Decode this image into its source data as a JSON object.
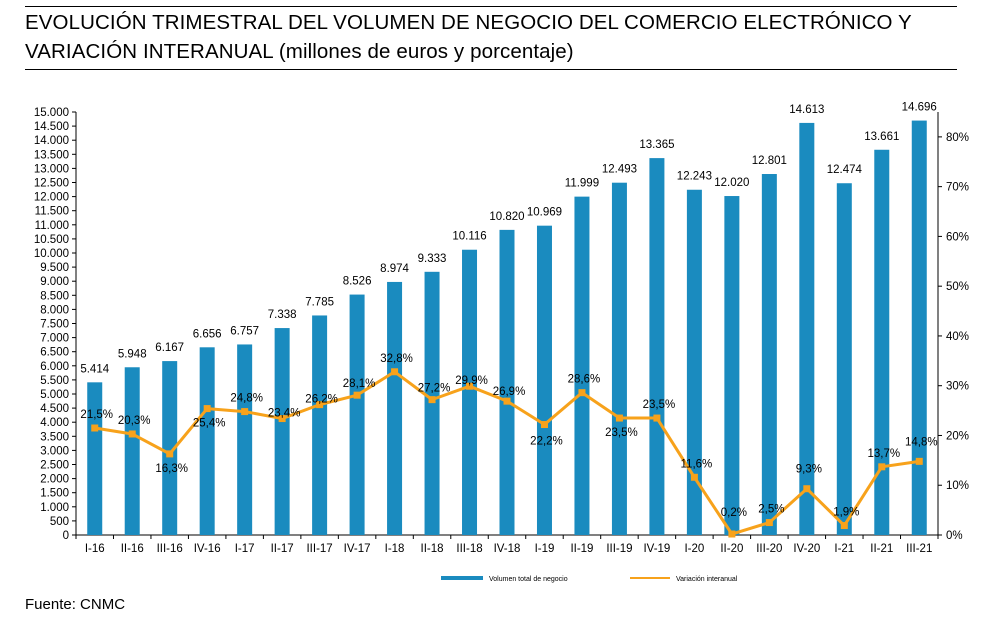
{
  "title": {
    "line1": "EVOLUCIÓN TRIMESTRAL DEL VOLUMEN DE NEGOCIO DEL COMERCIO ELECTRÓNICO Y",
    "line2": "VARIACIÓN INTERANUAL (millones de euros y porcentaje)"
  },
  "source": "Fuente: CNMC",
  "colors": {
    "bar": "#1a8bbf",
    "line": "#f7a21b"
  },
  "chart_data": {
    "type": "bar+line",
    "categories": [
      "I-16",
      "II-16",
      "III-16",
      "IV-16",
      "I-17",
      "II-17",
      "III-17",
      "IV-17",
      "I-18",
      "II-18",
      "III-18",
      "IV-18",
      "I-19",
      "II-19",
      "III-19",
      "IV-19",
      "I-20",
      "II-20",
      "III-20",
      "IV-20",
      "I-21",
      "II-21",
      "III-21"
    ],
    "series": [
      {
        "name": "Volumen total de negocio",
        "axis": "left",
        "type": "bar",
        "values": [
          5414,
          5948,
          6167,
          6656,
          6757,
          7338,
          7785,
          8526,
          8974,
          9333,
          10116,
          10820,
          10969,
          11999,
          12493,
          13365,
          12243,
          12020,
          12801,
          14613,
          12474,
          13661,
          14696
        ],
        "labels": [
          "5.414",
          "5.948",
          "6.167",
          "6.656",
          "6.757",
          "7.338",
          "7.785",
          "8.526",
          "8.974",
          "9.333",
          "10.116",
          "10.820",
          "10.969",
          "11.999",
          "12.493",
          "13.365",
          "12.243",
          "12.020",
          "12.801",
          "14.613",
          "12.474",
          "13.661",
          "14.696"
        ]
      },
      {
        "name": "Variación interanual",
        "axis": "right",
        "type": "line",
        "values": [
          21.5,
          20.3,
          16.3,
          25.4,
          24.8,
          23.4,
          26.2,
          28.1,
          32.8,
          27.2,
          29.9,
          26.9,
          22.2,
          28.6,
          23.5,
          23.5,
          11.6,
          0.2,
          2.5,
          9.3,
          1.9,
          13.7,
          14.8
        ],
        "labels": [
          "21,5%",
          "20,3%",
          "16,3%",
          "25,4%",
          "24,8%",
          "23,4%",
          "26,2%",
          "28,1%",
          "32,8%",
          "27,2%",
          "29,9%",
          "26,9%",
          "22,2%",
          "28,6%",
          "23,5%",
          "23,5%",
          "11,6%",
          "0,2%",
          "2,5%",
          "9,3%",
          "1,9%",
          "13,7%",
          "14,8%"
        ]
      }
    ],
    "y_left": {
      "ylim": [
        0,
        15000
      ],
      "ticks": [
        0,
        500,
        1000,
        1500,
        2000,
        2500,
        3000,
        3500,
        4000,
        4500,
        5000,
        5500,
        6000,
        6500,
        7000,
        7500,
        8000,
        8500,
        9000,
        9500,
        10000,
        10500,
        11000,
        11500,
        12000,
        12500,
        13000,
        13500,
        14000,
        14500,
        15000
      ],
      "tick_labels": [
        "0",
        "500",
        "1.000",
        "1.500",
        "2.000",
        "2.500",
        "3.000",
        "3.500",
        "4.000",
        "4.500",
        "5.000",
        "5.500",
        "6.000",
        "6.500",
        "7.000",
        "7.500",
        "8.000",
        "8.500",
        "9.000",
        "9.500",
        "10.000",
        "10.500",
        "11.000",
        "11.500",
        "12.000",
        "12.500",
        "13.000",
        "13.500",
        "14.000",
        "14.500",
        "15.000"
      ]
    },
    "y_right": {
      "ylim": [
        0,
        85
      ],
      "ticks": [
        0,
        10,
        20,
        30,
        40,
        50,
        60,
        70,
        80
      ],
      "tick_labels": [
        "0%",
        "10%",
        "20%",
        "30%",
        "40%",
        "50%",
        "60%",
        "70%",
        "80%"
      ]
    },
    "grid": false,
    "legend": "bottom-center",
    "legend_labels": [
      "Volumen total de negocio",
      "Variación interanual"
    ]
  }
}
